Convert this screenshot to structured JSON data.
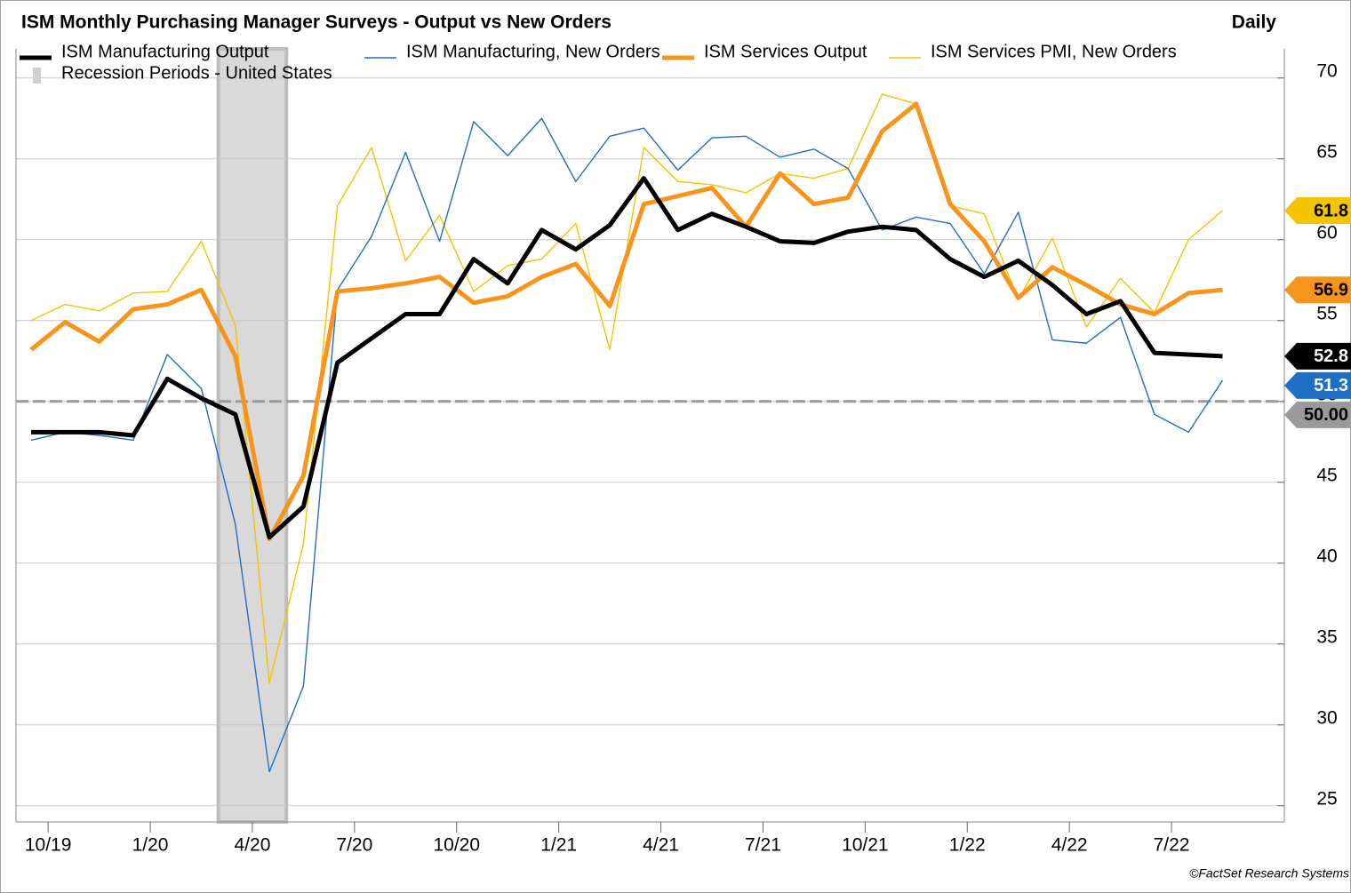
{
  "chart_data": {
    "type": "line",
    "title": "ISM Monthly Purchasing Manager Surveys - Output vs New Orders",
    "frequency": "Daily",
    "credit": "©FactSet Research Systems",
    "x": [
      "2019-09",
      "2019-10",
      "2019-11",
      "2019-12",
      "2020-01",
      "2020-02",
      "2020-03",
      "2020-04",
      "2020-05",
      "2020-06",
      "2020-07",
      "2020-08",
      "2020-09",
      "2020-10",
      "2020-11",
      "2020-12",
      "2021-01",
      "2021-02",
      "2021-03",
      "2021-04",
      "2021-05",
      "2021-06",
      "2021-07",
      "2021-08",
      "2021-09",
      "2021-10",
      "2021-11",
      "2021-12",
      "2022-01",
      "2022-02",
      "2022-03",
      "2022-04",
      "2022-05",
      "2022-06",
      "2022-07",
      "2022-08"
    ],
    "series": [
      {
        "name": "ISM Manufacturing Output",
        "color": "#000000",
        "width": 5,
        "end_label": "52.8",
        "values": [
          48.1,
          48.1,
          48.1,
          47.9,
          51.4,
          50.2,
          49.2,
          41.6,
          43.5,
          52.4,
          53.9,
          55.4,
          55.4,
          58.8,
          57.3,
          60.6,
          59.4,
          60.9,
          63.8,
          60.6,
          61.6,
          60.8,
          59.9,
          59.8,
          60.5,
          60.8,
          60.6,
          58.8,
          57.7,
          58.7,
          57.2,
          55.4,
          56.2,
          53.0,
          52.9,
          52.8
        ]
      },
      {
        "name": "ISM Manufacturing, New Orders",
        "color": "#1f6fc5",
        "width": 1.4,
        "end_label": "51.3",
        "values": [
          47.6,
          48.1,
          47.9,
          47.6,
          52.9,
          50.8,
          42.4,
          27.1,
          32.4,
          56.9,
          60.2,
          65.4,
          59.9,
          67.3,
          65.2,
          67.5,
          63.6,
          66.4,
          66.9,
          64.3,
          66.3,
          66.4,
          65.1,
          65.6,
          64.4,
          60.6,
          61.4,
          61.0,
          57.9,
          61.7,
          53.8,
          53.6,
          55.2,
          49.2,
          48.1,
          51.3
        ]
      },
      {
        "name": "ISM Services Output",
        "color": "#f7941d",
        "width": 5,
        "end_label": "56.9",
        "values": [
          53.2,
          54.9,
          53.7,
          55.7,
          56.0,
          56.9,
          52.8,
          41.5,
          45.4,
          56.8,
          57.0,
          57.3,
          57.7,
          56.1,
          56.5,
          57.7,
          58.5,
          55.9,
          62.2,
          62.7,
          63.2,
          60.8,
          64.1,
          62.2,
          62.6,
          66.7,
          68.4,
          62.2,
          59.9,
          56.4,
          58.3,
          57.2,
          56.0,
          55.4,
          56.7,
          56.9
        ]
      },
      {
        "name": "ISM Services PMI, New Orders",
        "color": "#f5c400",
        "width": 1.4,
        "end_label": "61.8",
        "values": [
          55.0,
          56.0,
          55.6,
          56.7,
          56.8,
          59.9,
          54.7,
          32.6,
          41.2,
          62.1,
          65.7,
          58.7,
          61.5,
          56.8,
          58.4,
          58.8,
          61.0,
          53.2,
          65.7,
          63.6,
          63.4,
          62.9,
          64.1,
          63.8,
          64.4,
          69.0,
          68.4,
          62.1,
          61.6,
          56.3,
          60.1,
          54.6,
          57.6,
          55.5,
          60.0,
          61.8
        ]
      }
    ],
    "recession": {
      "name": "Recession Periods - United States",
      "color": "#d9d9d9",
      "start": "2020-03",
      "end": "2020-04"
    },
    "reference_line": {
      "value": 50,
      "label": "50.00",
      "color": "#9a9a9a"
    },
    "ylim": [
      24,
      71.8
    ],
    "yticks": [
      25,
      30,
      35,
      40,
      45,
      50,
      55,
      60,
      65,
      70
    ],
    "xticks": [
      {
        "value": "2019-10",
        "label": "10/19"
      },
      {
        "value": "2020-01",
        "label": "1/20"
      },
      {
        "value": "2020-04",
        "label": "4/20"
      },
      {
        "value": "2020-07",
        "label": "7/20"
      },
      {
        "value": "2020-10",
        "label": "10/20"
      },
      {
        "value": "2021-01",
        "label": "1/21"
      },
      {
        "value": "2021-04",
        "label": "4/21"
      },
      {
        "value": "2021-07",
        "label": "7/21"
      },
      {
        "value": "2021-10",
        "label": "10/21"
      },
      {
        "value": "2022-01",
        "label": "1/22"
      },
      {
        "value": "2022-04",
        "label": "4/22"
      },
      {
        "value": "2022-07",
        "label": "7/22"
      }
    ],
    "grid": true
  }
}
